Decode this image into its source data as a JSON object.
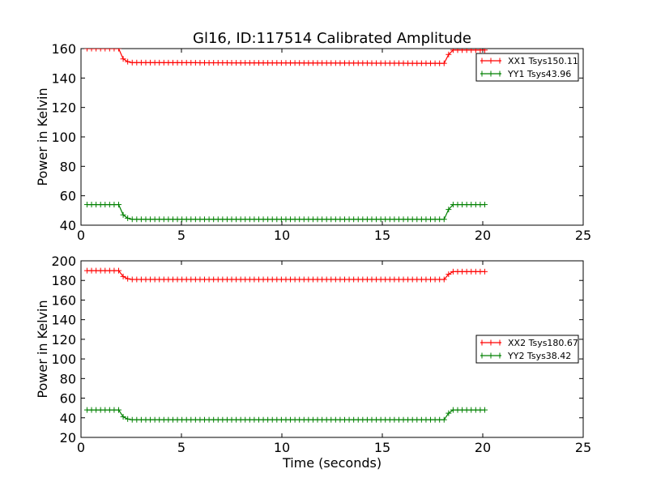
{
  "figure": {
    "title": "Gl16, ID:117514 Calibrated Amplitude"
  },
  "colors": {
    "xx": "#ff0000",
    "yy": "#008000"
  },
  "chart_data": [
    {
      "type": "line",
      "title": "Gl16, ID:117514 Calibrated Amplitude",
      "xlabel": "",
      "ylabel": "Power in Kelvin",
      "xlim": [
        0,
        25
      ],
      "ylim": [
        40,
        160
      ],
      "xticks": [
        0,
        5,
        10,
        15,
        20,
        25
      ],
      "yticks": [
        40,
        60,
        80,
        100,
        120,
        140,
        160
      ],
      "grid": false,
      "legend": "upper-right",
      "series": [
        {
          "name": "XX1 Tsys150.11",
          "color": "#ff0000",
          "marker": "+",
          "x": [
            0.3,
            1.9,
            2.1,
            2.4,
            18.1,
            18.4,
            20.2
          ],
          "y": [
            160,
            160,
            153,
            150.5,
            150,
            159,
            159
          ]
        },
        {
          "name": "YY1 Tsys43.96",
          "color": "#008000",
          "marker": "+",
          "x": [
            0.3,
            1.9,
            2.1,
            2.4,
            18.1,
            18.4,
            20.2
          ],
          "y": [
            54,
            54,
            47,
            44,
            44,
            54,
            54
          ]
        }
      ]
    },
    {
      "type": "line",
      "title": "",
      "xlabel": "Time (seconds)",
      "ylabel": "Power in Kelvin",
      "xlim": [
        0,
        25
      ],
      "ylim": [
        20,
        200
      ],
      "xticks": [
        0,
        5,
        10,
        15,
        20,
        25
      ],
      "yticks": [
        20,
        40,
        60,
        80,
        100,
        120,
        140,
        160,
        180,
        200
      ],
      "grid": false,
      "legend": "center-right",
      "series": [
        {
          "name": "XX2 Tsys180.67",
          "color": "#ff0000",
          "marker": "+",
          "x": [
            0.3,
            1.9,
            2.1,
            2.4,
            18.1,
            18.4,
            20.2
          ],
          "y": [
            190,
            190,
            184,
            181,
            181,
            189,
            189
          ]
        },
        {
          "name": "YY2 Tsys38.42",
          "color": "#008000",
          "marker": "+",
          "x": [
            0.3,
            1.9,
            2.1,
            2.4,
            18.1,
            18.4,
            20.2
          ],
          "y": [
            48,
            48,
            41,
            38,
            38,
            48,
            48
          ]
        }
      ]
    }
  ]
}
